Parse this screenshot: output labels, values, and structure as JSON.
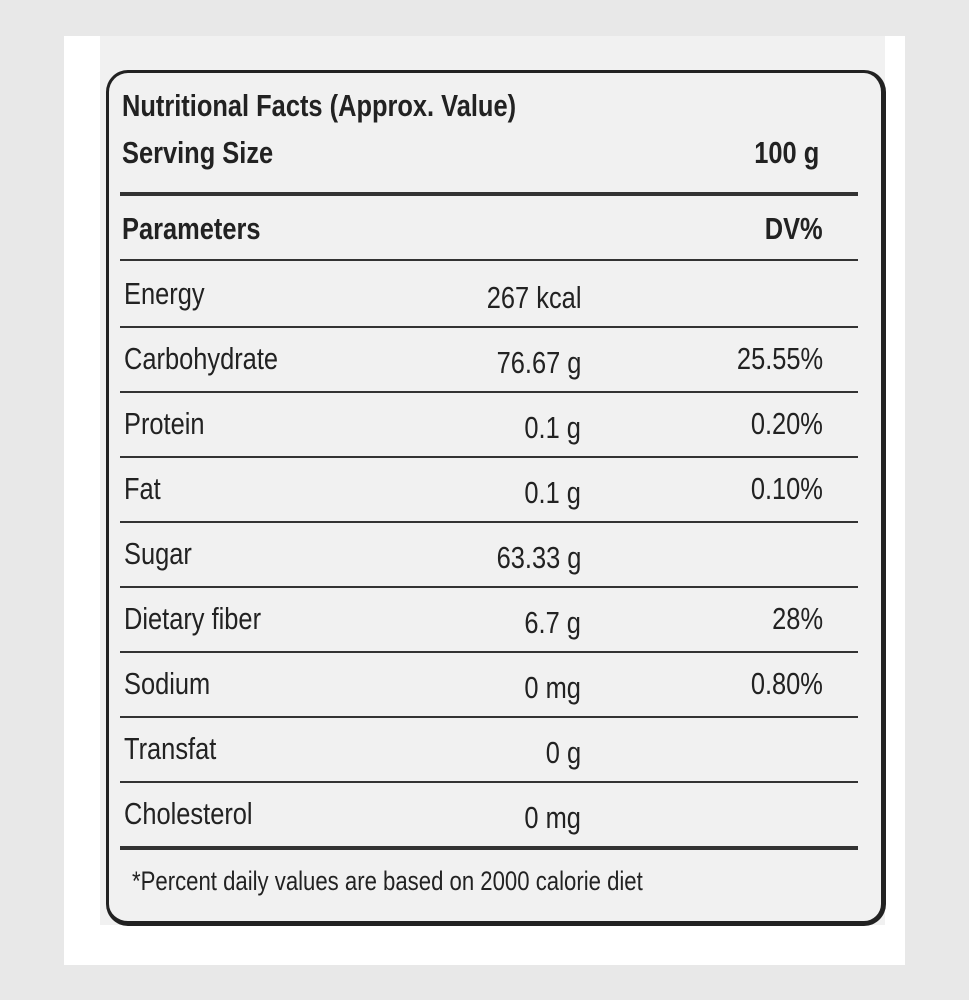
{
  "header": {
    "title": "Nutritional Facts (Approx. Value)",
    "serving_label": "Serving Size",
    "serving_value": "100 g"
  },
  "table": {
    "columns": [
      "Parameters",
      "DV%"
    ],
    "rows": [
      {
        "name": "Energy",
        "amount": "267 kcal"
      },
      {
        "name": "Carbohydrate",
        "amount": "76.67 g",
        "dv": "25.55%"
      },
      {
        "name": "Protein",
        "amount": "0.1 g",
        "dv": "0.20%"
      },
      {
        "name": "Fat",
        "amount": "0.1 g",
        "dv": "0.10%"
      },
      {
        "name": "Sugar",
        "amount": "63.33 g"
      },
      {
        "name": "Dietary fiber",
        "amount": "6.7 g",
        "dv": "28%"
      },
      {
        "name": "Sodium",
        "amount": "0 mg",
        "dv": "0.80%"
      },
      {
        "name": "Transfat",
        "amount": "0 g"
      },
      {
        "name": "Cholesterol",
        "amount": "0 mg"
      }
    ]
  },
  "footnote": "*Percent daily values are based on 2000 calorie diet"
}
